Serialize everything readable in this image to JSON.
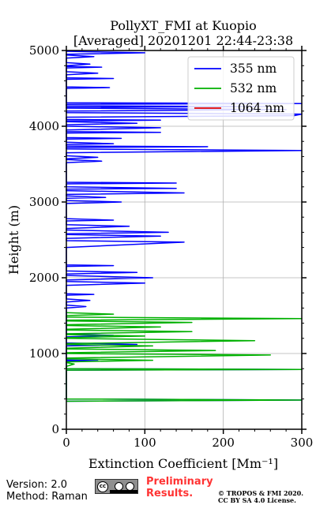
{
  "footer": {
    "version": "Version: 2.0",
    "method": "Method: Raman",
    "preliminary_line1": "Preliminary",
    "preliminary_line2": "Results.",
    "copyright_line1": "© TROPOS & FMI 2020.",
    "copyright_line2": "CC BY SA 4.0 License."
  },
  "license_badge": {
    "type": "cc-by-sa-icon"
  },
  "chart_data": {
    "type": "line",
    "title": "PollyXT_FMI at Kuopio",
    "subtitle": "[Averaged] 20201201 22:44-23:38",
    "xlabel": "Extinction Coefficient [Mm⁻¹]",
    "ylabel": "Height (m)",
    "xlim": [
      0,
      300
    ],
    "ylim": [
      0,
      5000
    ],
    "x_ticks": [
      0,
      100,
      200,
      300
    ],
    "y_ticks": [
      0,
      1000,
      2000,
      3000,
      4000,
      5000
    ],
    "grid": true,
    "legend_position": "top-right",
    "series": [
      {
        "name": "355 nm",
        "color": "#0000ff",
        "points": [
          [
            0,
            370
          ],
          [
            300,
            385
          ],
          [
            0,
            400
          ],
          [
            0,
            780
          ],
          [
            300,
            790
          ],
          [
            0,
            800
          ],
          [
            0,
            900
          ],
          [
            40,
            905
          ],
          [
            0,
            915
          ],
          [
            0,
            1100
          ],
          [
            90,
            1120
          ],
          [
            0,
            1140
          ],
          [
            0,
            1220
          ],
          [
            60,
            1240
          ],
          [
            0,
            1260
          ],
          [
            0,
            1560
          ],
          [
            0,
            1600
          ],
          [
            25,
            1620
          ],
          [
            0,
            1640
          ],
          [
            0,
            1680
          ],
          [
            30,
            1700
          ],
          [
            0,
            1720
          ],
          [
            0,
            1770
          ],
          [
            35,
            1780
          ],
          [
            0,
            1790
          ],
          [
            0,
            1900
          ],
          [
            100,
            1930
          ],
          [
            0,
            1950
          ],
          [
            0,
            1970
          ],
          [
            110,
            2000
          ],
          [
            0,
            2030
          ],
          [
            0,
            2050
          ],
          [
            90,
            2070
          ],
          [
            0,
            2090
          ],
          [
            0,
            2150
          ],
          [
            60,
            2160
          ],
          [
            0,
            2170
          ],
          [
            0,
            2400
          ],
          [
            150,
            2470
          ],
          [
            0,
            2490
          ],
          [
            0,
            2520
          ],
          [
            120,
            2550
          ],
          [
            0,
            2570
          ],
          [
            0,
            2580
          ],
          [
            130,
            2600
          ],
          [
            0,
            2630
          ],
          [
            0,
            2650
          ],
          [
            80,
            2680
          ],
          [
            0,
            2700
          ],
          [
            0,
            2750
          ],
          [
            60,
            2760
          ],
          [
            0,
            2780
          ],
          [
            0,
            2980
          ],
          [
            70,
            3000
          ],
          [
            0,
            3020
          ],
          [
            0,
            3050
          ],
          [
            50,
            3060
          ],
          [
            0,
            3080
          ],
          [
            0,
            3100
          ],
          [
            150,
            3120
          ],
          [
            0,
            3150
          ],
          [
            0,
            3170
          ],
          [
            140,
            3180
          ],
          [
            0,
            3200
          ],
          [
            0,
            3240
          ],
          [
            140,
            3250
          ],
          [
            0,
            3260
          ],
          [
            0,
            3520
          ],
          [
            45,
            3540
          ],
          [
            0,
            3560
          ],
          [
            0,
            3570
          ],
          [
            40,
            3590
          ],
          [
            0,
            3610
          ],
          [
            0,
            3650
          ],
          [
            300,
            3680
          ],
          [
            0,
            3700
          ],
          [
            0,
            3720
          ],
          [
            180,
            3730
          ],
          [
            0,
            3740
          ],
          [
            0,
            3760
          ],
          [
            60,
            3770
          ],
          [
            0,
            3790
          ],
          [
            0,
            3830
          ],
          [
            70,
            3840
          ],
          [
            0,
            3850
          ],
          [
            0,
            3910
          ],
          [
            120,
            3920
          ],
          [
            0,
            3930
          ],
          [
            0,
            3950
          ],
          [
            120,
            3980
          ],
          [
            0,
            4000
          ],
          [
            0,
            4020
          ],
          [
            90,
            4040
          ],
          [
            0,
            4060
          ],
          [
            0,
            4070
          ],
          [
            120,
            4080
          ],
          [
            0,
            4090
          ],
          [
            0,
            4120
          ],
          [
            290,
            4140
          ],
          [
            300,
            4160
          ],
          [
            0,
            4180
          ],
          [
            0,
            4200
          ],
          [
            280,
            4220
          ],
          [
            0,
            4240
          ],
          [
            0,
            4250
          ],
          [
            260,
            4260
          ],
          [
            0,
            4270
          ],
          [
            0,
            4290
          ],
          [
            300,
            4300
          ],
          [
            0,
            4310
          ],
          [
            0,
            4500
          ],
          [
            55,
            4510
          ],
          [
            0,
            4520
          ],
          [
            0,
            4620
          ],
          [
            60,
            4630
          ],
          [
            0,
            4640
          ],
          [
            0,
            4680
          ],
          [
            40,
            4700
          ],
          [
            0,
            4720
          ],
          [
            0,
            4770
          ],
          [
            45,
            4780
          ],
          [
            0,
            4790
          ],
          [
            0,
            4800
          ],
          [
            30,
            4820
          ],
          [
            0,
            4840
          ],
          [
            0,
            4900
          ],
          [
            35,
            4920
          ],
          [
            0,
            4940
          ],
          [
            0,
            4950
          ],
          [
            100,
            4970
          ],
          [
            0,
            4990
          ]
        ]
      },
      {
        "name": "532 nm",
        "color": "#00b000",
        "points": [
          [
            0,
            370
          ],
          [
            300,
            385
          ],
          [
            0,
            400
          ],
          [
            0,
            780
          ],
          [
            300,
            790
          ],
          [
            0,
            800
          ],
          [
            0,
            830
          ],
          [
            10,
            860
          ],
          [
            0,
            880
          ],
          [
            0,
            890
          ],
          [
            110,
            910
          ],
          [
            0,
            930
          ],
          [
            0,
            940
          ],
          [
            260,
            980
          ],
          [
            0,
            1000
          ],
          [
            0,
            1010
          ],
          [
            190,
            1040
          ],
          [
            0,
            1060
          ],
          [
            0,
            1070
          ],
          [
            110,
            1100
          ],
          [
            0,
            1120
          ],
          [
            0,
            1130
          ],
          [
            240,
            1170
          ],
          [
            0,
            1200
          ],
          [
            0,
            1210
          ],
          [
            100,
            1230
          ],
          [
            0,
            1250
          ],
          [
            0,
            1260
          ],
          [
            160,
            1290
          ],
          [
            0,
            1310
          ],
          [
            0,
            1320
          ],
          [
            120,
            1350
          ],
          [
            0,
            1370
          ],
          [
            0,
            1380
          ],
          [
            160,
            1410
          ],
          [
            0,
            1430
          ],
          [
            0,
            1440
          ],
          [
            300,
            1460
          ],
          [
            0,
            1480
          ],
          [
            0,
            1500
          ],
          [
            60,
            1520
          ],
          [
            0,
            1540
          ]
        ]
      },
      {
        "name": "1064 nm",
        "color": "#e00000",
        "points": []
      }
    ]
  }
}
